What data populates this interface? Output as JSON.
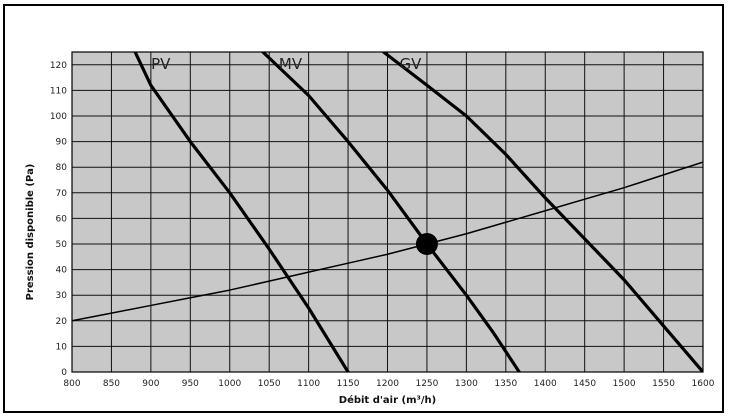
{
  "chart_data": {
    "type": "line",
    "xlabel": "Débit d'air (m³/h)",
    "ylabel": "Pression disponible (Pa)",
    "xlim": [
      800,
      1600
    ],
    "ylim": [
      0,
      125
    ],
    "x_ticks": [
      800,
      850,
      900,
      950,
      1000,
      1050,
      1100,
      1150,
      1200,
      1250,
      1300,
      1350,
      1400,
      1450,
      1500,
      1550,
      1600
    ],
    "y_ticks": [
      0,
      10,
      20,
      30,
      40,
      50,
      60,
      70,
      80,
      90,
      100,
      110,
      120
    ],
    "grid": true,
    "plot_background": "#c8c8c8",
    "series": [
      {
        "name": "PV",
        "color": "#000000",
        "points": [
          [
            880,
            125
          ],
          [
            900,
            112
          ],
          [
            950,
            90
          ],
          [
            1000,
            70
          ],
          [
            1050,
            48
          ],
          [
            1100,
            25
          ],
          [
            1150,
            0
          ]
        ]
      },
      {
        "name": "MV",
        "color": "#000000",
        "points": [
          [
            1042,
            125
          ],
          [
            1100,
            108
          ],
          [
            1150,
            90
          ],
          [
            1200,
            71
          ],
          [
            1250,
            50
          ],
          [
            1300,
            30
          ],
          [
            1335,
            15
          ],
          [
            1367,
            0
          ]
        ]
      },
      {
        "name": "GV",
        "color": "#000000",
        "points": [
          [
            1195,
            125
          ],
          [
            1250,
            112
          ],
          [
            1300,
            100
          ],
          [
            1350,
            85
          ],
          [
            1400,
            68
          ],
          [
            1450,
            52
          ],
          [
            1500,
            36
          ],
          [
            1550,
            18
          ],
          [
            1600,
            0
          ]
        ]
      },
      {
        "name": "",
        "color": "#000000",
        "points": [
          [
            800,
            20
          ],
          [
            850,
            23
          ],
          [
            900,
            26
          ],
          [
            950,
            29
          ],
          [
            1000,
            32
          ],
          [
            1050,
            35.5
          ],
          [
            1100,
            39
          ],
          [
            1150,
            42.5
          ],
          [
            1200,
            46
          ],
          [
            1250,
            50
          ],
          [
            1300,
            54
          ],
          [
            1350,
            58.5
          ],
          [
            1400,
            63
          ],
          [
            1450,
            67.5
          ],
          [
            1500,
            72
          ],
          [
            1550,
            77
          ],
          [
            1600,
            82
          ]
        ]
      }
    ],
    "marker": {
      "x": 1250,
      "y": 50,
      "color": "#000000"
    }
  }
}
